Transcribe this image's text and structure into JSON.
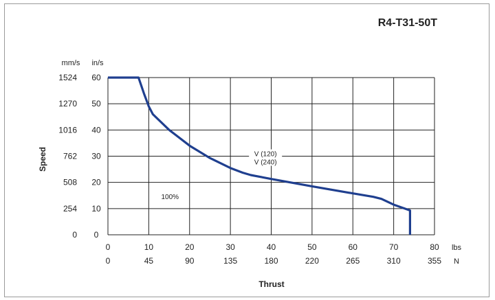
{
  "chart_data": {
    "type": "line",
    "title": "R4-T31-50T",
    "xlabel": "Thrust",
    "ylabel": "Speed",
    "x_unit_primary": "lbs",
    "x_unit_secondary": "N",
    "y_unit_primary": "in/s",
    "y_unit_secondary": "mm/s",
    "xlim": [
      0,
      80
    ],
    "ylim": [
      0,
      60
    ],
    "x_ticks_lbs": [
      "0",
      "10",
      "20",
      "30",
      "40",
      "50",
      "60",
      "70",
      "80"
    ],
    "x_ticks_N": [
      "0",
      "45",
      "90",
      "135",
      "180",
      "220",
      "265",
      "310",
      "355"
    ],
    "y_ticks_ins": [
      "0",
      "10",
      "20",
      "30",
      "40",
      "50",
      "60"
    ],
    "y_ticks_mms": [
      "0",
      "254",
      "508",
      "762",
      "1016",
      "1270",
      "1524"
    ],
    "grid": true,
    "annotations": [
      "V (120)",
      "V (240)",
      "100%"
    ],
    "series": [
      {
        "color": "#1f3f8f",
        "x": [
          0,
          7.5,
          8.8,
          10,
          11,
          15,
          20,
          25,
          30,
          33,
          35,
          40,
          50,
          60,
          65,
          67,
          70,
          74,
          74
        ],
        "y": [
          60,
          60,
          54,
          49,
          46,
          40,
          34,
          29.3,
          25.5,
          23.7,
          22.8,
          21.3,
          18.5,
          15.8,
          14.5,
          13.7,
          11.5,
          9.3,
          0
        ]
      }
    ]
  }
}
